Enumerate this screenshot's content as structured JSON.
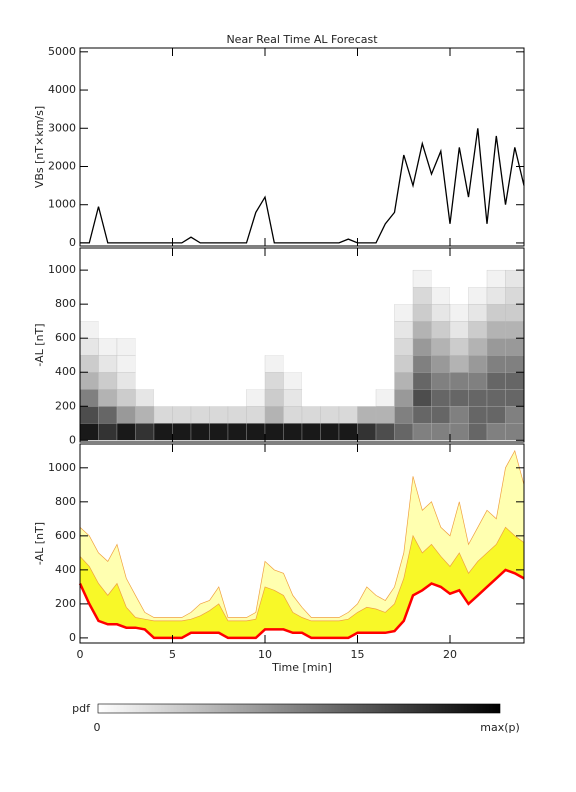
{
  "chart_data": [
    {
      "type": "line",
      "title": "Near Real Time AL Forecast",
      "ylabel": "VBs [nT×km/s]",
      "x": [
        0,
        0.5,
        1,
        1.5,
        2,
        2.5,
        3,
        3.5,
        4,
        4.5,
        5,
        5.5,
        6,
        6.5,
        7,
        7.5,
        8,
        8.5,
        9,
        9.5,
        10,
        10.5,
        11,
        11.5,
        12,
        12.5,
        13,
        13.5,
        14,
        14.5,
        15,
        15.5,
        16,
        16.5,
        17,
        17.5,
        18,
        18.5,
        19,
        19.5,
        20,
        20.5,
        21,
        21.5,
        22,
        22.5,
        23,
        23.5,
        24
      ],
      "series": [
        {
          "color": "#000000",
          "values": [
            0,
            0,
            950,
            0,
            0,
            0,
            0,
            0,
            0,
            0,
            0,
            0,
            150,
            0,
            0,
            0,
            0,
            0,
            0,
            800,
            1200,
            0,
            0,
            0,
            0,
            0,
            0,
            0,
            0,
            100,
            0,
            0,
            0,
            500,
            800,
            2300,
            1500,
            2600,
            1800,
            2400,
            500,
            2500,
            1200,
            3000,
            500,
            2800,
            1000,
            2500,
            1500
          ]
        }
      ],
      "xlim": [
        0,
        24
      ],
      "ylim": [
        -80,
        5100
      ],
      "yticks": [
        0,
        1000,
        2000,
        3000,
        4000,
        5000
      ]
    },
    {
      "type": "heatmap",
      "ylabel": "-AL [nT]",
      "xbins": [
        0,
        1,
        2,
        3,
        4,
        5,
        6,
        7,
        8,
        9,
        10,
        11,
        12,
        13,
        14,
        15,
        16,
        17,
        18,
        19,
        20,
        21,
        22,
        23,
        24
      ],
      "ybins": [
        0,
        100,
        200,
        300,
        400,
        500,
        600,
        700,
        800,
        900,
        1000
      ],
      "z": [
        [
          0.9,
          0.8,
          0.9,
          0.8,
          0.9,
          0.9,
          0.9,
          0.9,
          0.9,
          0.9,
          0.9,
          0.9,
          0.9,
          0.9,
          0.9,
          0.8,
          0.7,
          0.6,
          0.5,
          0.5,
          0.5,
          0.6,
          0.5,
          0.5
        ],
        [
          0.7,
          0.6,
          0.4,
          0.3,
          0.15,
          0.15,
          0.15,
          0.15,
          0.15,
          0.15,
          0.3,
          0.15,
          0.15,
          0.15,
          0.15,
          0.3,
          0.3,
          0.5,
          0.6,
          0.6,
          0.5,
          0.6,
          0.6,
          0.5
        ],
        [
          0.5,
          0.3,
          0.2,
          0.1,
          0,
          0,
          0,
          0,
          0,
          0.05,
          0.2,
          0.1,
          0,
          0,
          0,
          0,
          0.05,
          0.4,
          0.7,
          0.6,
          0.6,
          0.6,
          0.6,
          0.6
        ],
        [
          0.3,
          0.2,
          0.1,
          0,
          0,
          0,
          0,
          0,
          0,
          0,
          0.15,
          0.05,
          0,
          0,
          0,
          0,
          0,
          0.3,
          0.6,
          0.5,
          0.5,
          0.5,
          0.6,
          0.6
        ],
        [
          0.2,
          0.1,
          0.05,
          0,
          0,
          0,
          0,
          0,
          0,
          0,
          0.05,
          0,
          0,
          0,
          0,
          0,
          0,
          0.2,
          0.5,
          0.4,
          0.3,
          0.4,
          0.5,
          0.5
        ],
        [
          0.1,
          0.05,
          0.05,
          0,
          0,
          0,
          0,
          0,
          0,
          0,
          0,
          0,
          0,
          0,
          0,
          0,
          0,
          0.15,
          0.4,
          0.3,
          0.2,
          0.3,
          0.4,
          0.4
        ],
        [
          0.05,
          0,
          0,
          0,
          0,
          0,
          0,
          0,
          0,
          0,
          0,
          0,
          0,
          0,
          0,
          0,
          0,
          0.1,
          0.3,
          0.2,
          0.1,
          0.2,
          0.3,
          0.3
        ],
        [
          0,
          0,
          0,
          0,
          0,
          0,
          0,
          0,
          0,
          0,
          0,
          0,
          0,
          0,
          0,
          0,
          0,
          0.05,
          0.2,
          0.1,
          0.05,
          0.1,
          0.2,
          0.2
        ],
        [
          0,
          0,
          0,
          0,
          0,
          0,
          0,
          0,
          0,
          0,
          0,
          0,
          0,
          0,
          0,
          0,
          0,
          0,
          0.15,
          0.05,
          0,
          0.05,
          0.1,
          0.15
        ],
        [
          0,
          0,
          0,
          0,
          0,
          0,
          0,
          0,
          0,
          0,
          0,
          0,
          0,
          0,
          0,
          0,
          0,
          0,
          0.05,
          0,
          0,
          0,
          0.05,
          0.1
        ]
      ],
      "colormap": [
        "#ffffff",
        "#000000"
      ],
      "colorbar_label": "pdf",
      "colorbar_min": "0",
      "colorbar_max": "max(p)",
      "xlim": [
        0,
        24
      ],
      "ylim": [
        -10,
        1130
      ],
      "yticks": [
        0,
        200,
        400,
        600,
        800,
        1000
      ]
    },
    {
      "type": "band",
      "ylabel": "-AL [nT]",
      "xlabel": "Time [min]",
      "x": [
        0,
        0.5,
        1,
        1.5,
        2,
        2.5,
        3,
        3.5,
        4,
        4.5,
        5,
        5.5,
        6,
        6.5,
        7,
        7.5,
        8,
        8.5,
        9,
        9.5,
        10,
        10.5,
        11,
        11.5,
        12,
        12.5,
        13,
        13.5,
        14,
        14.5,
        15,
        15.5,
        16,
        16.5,
        17,
        17.5,
        18,
        18.5,
        19,
        19.5,
        20,
        20.5,
        21,
        21.5,
        22,
        22.5,
        23,
        23.5,
        24
      ],
      "series": [
        {
          "color": "#ff0000",
          "values": [
            320,
            200,
            100,
            80,
            80,
            60,
            60,
            50,
            0,
            0,
            0,
            0,
            30,
            30,
            30,
            30,
            0,
            0,
            0,
            0,
            50,
            50,
            50,
            30,
            30,
            0,
            0,
            0,
            0,
            0,
            30,
            30,
            30,
            30,
            40,
            100,
            250,
            280,
            320,
            300,
            260,
            280,
            200,
            250,
            300,
            350,
            400,
            380,
            350
          ]
        },
        {
          "color": "#f8f828",
          "values": [
            480,
            420,
            320,
            250,
            320,
            180,
            120,
            110,
            100,
            100,
            100,
            100,
            110,
            130,
            160,
            200,
            100,
            100,
            100,
            110,
            300,
            280,
            250,
            150,
            120,
            100,
            100,
            100,
            100,
            110,
            150,
            180,
            170,
            150,
            200,
            350,
            600,
            500,
            550,
            480,
            420,
            500,
            380,
            450,
            500,
            550,
            650,
            600,
            560
          ]
        },
        {
          "color": "#ffffb0",
          "values": [
            650,
            600,
            500,
            450,
            550,
            350,
            250,
            150,
            120,
            120,
            120,
            120,
            150,
            200,
            220,
            300,
            120,
            120,
            120,
            150,
            450,
            400,
            380,
            250,
            180,
            120,
            120,
            120,
            120,
            150,
            200,
            300,
            250,
            220,
            300,
            500,
            950,
            750,
            800,
            650,
            600,
            800,
            550,
            650,
            750,
            700,
            1000,
            1100,
            900
          ]
        }
      ],
      "xlim": [
        0,
        24
      ],
      "ylim": [
        -30,
        1140
      ],
      "yticks": [
        0,
        200,
        400,
        600,
        800,
        1000
      ],
      "xticks": [
        0,
        5,
        10,
        15,
        20
      ]
    }
  ]
}
